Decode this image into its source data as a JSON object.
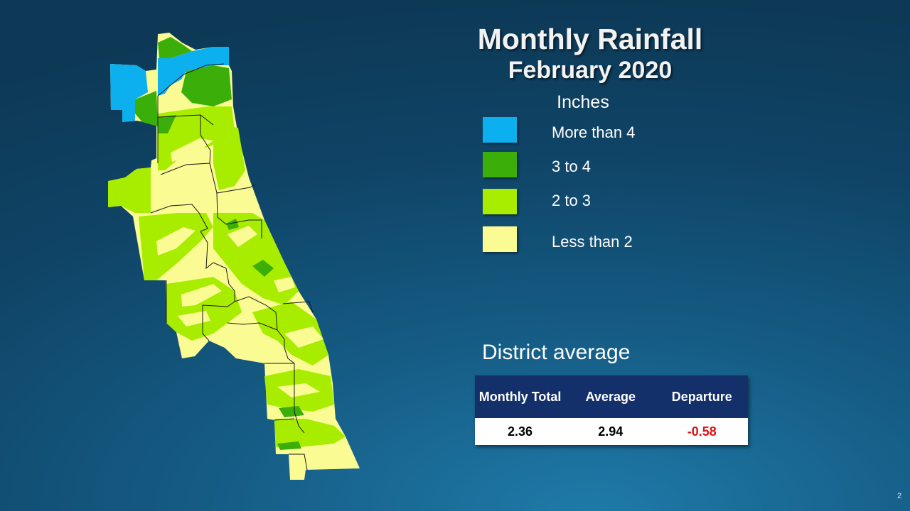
{
  "slide": {
    "title": "Monthly Rainfall",
    "subtitle": "February 2020",
    "page_number": "2"
  },
  "legend": {
    "title": "Inches",
    "items": [
      {
        "label": "More than 4",
        "color": "#0db0ee"
      },
      {
        "label": "3 to 4",
        "color": "#3cae0a"
      },
      {
        "label": "2 to 3",
        "color": "#a8ec00"
      },
      {
        "label": "Less than 2",
        "color": "#fbfb94"
      }
    ]
  },
  "district_average": {
    "heading": "District average",
    "headers": [
      "Monthly Total",
      "Average",
      "Departure"
    ],
    "values": [
      "2.36",
      "2.94",
      "-0.58"
    ]
  },
  "colors": {
    "background": "#155c85",
    "table_header": "#14306a",
    "negative_value": "#e01010"
  }
}
